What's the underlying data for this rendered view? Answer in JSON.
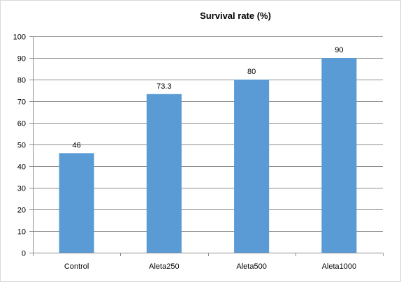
{
  "chart_data": {
    "type": "bar",
    "title": "Survival rate (%)",
    "xlabel": "",
    "ylabel": "",
    "categories": [
      "Control",
      "Aleta250",
      "Aleta500",
      "Aleta1000"
    ],
    "values": [
      46,
      73.3,
      80,
      90
    ],
    "data_labels": [
      "46",
      "73.3",
      "80",
      "90"
    ],
    "ylim": [
      0,
      100
    ],
    "yticks": [
      0,
      10,
      20,
      30,
      40,
      50,
      60,
      70,
      80,
      90,
      100
    ],
    "grid": true,
    "legend": "none",
    "bar_color": "#5b9bd5",
    "grid_color": "#8c8c8c"
  }
}
